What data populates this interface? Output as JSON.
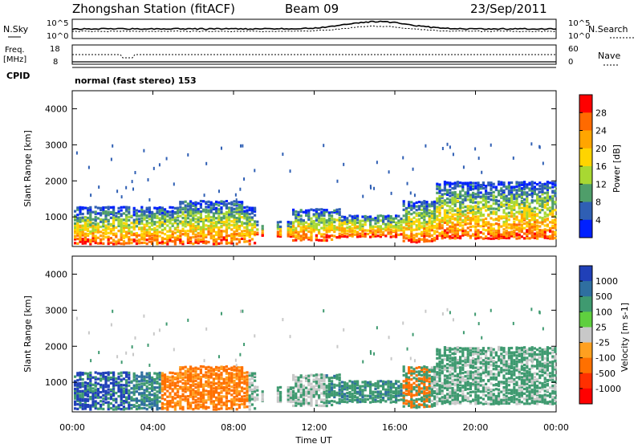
{
  "header": {
    "title": "Zhongshan Station (fitACF)",
    "beam": "Beam 09",
    "date": "23/Sep/2011"
  },
  "top_panels": {
    "nsky_label": "N.Sky",
    "nsky_ticks": [
      "10^5",
      "10^0"
    ],
    "nsearch_label": "N.Search",
    "nsearch_ticks": [
      "10^5",
      "10^0"
    ],
    "freq_label": "Freq.",
    "freq_unit": "[MHz]",
    "freq_ticks": [
      "18",
      "8"
    ],
    "nave_label": "Nave",
    "nave_ticks": [
      "60",
      "0"
    ],
    "cpid_label": "CPID",
    "cpid_text": "normal (fast stereo) 153"
  },
  "chart_data": [
    {
      "type": "heatmap",
      "name": "power",
      "ylabel": "Slant Range [km]",
      "yticks": [
        "4000",
        "3000",
        "2000",
        "1000"
      ],
      "ylim": [
        180,
        4500
      ],
      "colorbar": {
        "label": "Power [dB]",
        "ticks": [
          "28",
          "24",
          "20",
          "16",
          "12",
          "8",
          "4"
        ],
        "colors": [
          "#ff0000",
          "#ff6a00",
          "#ffa500",
          "#ffd400",
          "#a8d832",
          "#4f9e6a",
          "#2f5fb4",
          "#0020ff"
        ]
      },
      "xticks": [
        "00:00",
        "04:00",
        "08:00",
        "12:00",
        "16:00",
        "20:00",
        "00:00"
      ],
      "xlabel": "Time UT"
    },
    {
      "type": "heatmap",
      "name": "velocity",
      "ylabel": "Slant Range [km]",
      "yticks": [
        "4000",
        "3000",
        "2000",
        "1000"
      ],
      "ylim": [
        180,
        4500
      ],
      "colorbar": {
        "label": "Velocity [m s-1]",
        "ticks": [
          "1000",
          "500",
          "100",
          "25",
          "-25",
          "-100",
          "-500",
          "-1000"
        ],
        "colors": [
          "#2040b8",
          "#2f6fa0",
          "#3f9a70",
          "#5fcf3f",
          "#c8c8c8",
          "#ffa020",
          "#ff7000",
          "#ff3000",
          "#ff0000"
        ]
      },
      "xticks": [
        "00:00",
        "04:00",
        "08:00",
        "12:00",
        "16:00",
        "20:00",
        "00:00"
      ],
      "xlabel": "Time UT"
    }
  ]
}
